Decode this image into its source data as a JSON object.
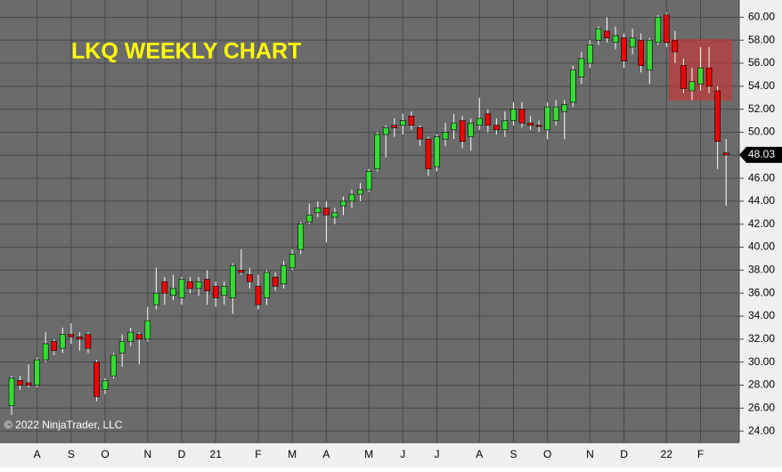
{
  "chart_data": {
    "type": "candlestick",
    "title": "LKQ WEEKLY CHART",
    "copyright": "© 2022 NinjaTrader, LLC",
    "categories": [
      null,
      null,
      null,
      "A",
      null,
      null,
      null,
      "S",
      null,
      null,
      null,
      "O",
      null,
      null,
      null,
      null,
      "N",
      null,
      null,
      null,
      "D",
      null,
      null,
      null,
      "21",
      null,
      null,
      null,
      null,
      "F",
      null,
      null,
      null,
      "M",
      null,
      null,
      null,
      "A",
      null,
      null,
      null,
      null,
      "M",
      null,
      null,
      null,
      "J",
      null,
      null,
      null,
      "J",
      null,
      null,
      null,
      null,
      "A",
      null,
      null,
      null,
      "S",
      null,
      null,
      null,
      "O",
      null,
      null,
      null,
      null,
      "N",
      null,
      null,
      null,
      "D",
      null,
      null,
      null,
      null,
      "22",
      null,
      null,
      null,
      "F",
      null,
      null,
      null
    ],
    "open": [
      26.2,
      28.4,
      28.2,
      28.0,
      30.2,
      31.8,
      31.2,
      32.4,
      32.2,
      32.4,
      30.0,
      27.6,
      28.8,
      30.8,
      31.8,
      32.4,
      32.0,
      35.0,
      37.0,
      35.8,
      35.6,
      37.0,
      36.4,
      37.2,
      36.6,
      35.8,
      35.6,
      38.0,
      37.6,
      36.6,
      35.6,
      37.4,
      36.8,
      38.2,
      39.8,
      42.2,
      43.0,
      43.4,
      42.6,
      43.6,
      44.0,
      44.6,
      45.0,
      46.8,
      49.8,
      50.6,
      50.6,
      51.4,
      50.4,
      49.4,
      47.0,
      49.4,
      50.2,
      51.0,
      49.6,
      50.6,
      51.6,
      50.6,
      50.2,
      51.0,
      52.0,
      50.8,
      50.6,
      50.2,
      51.0,
      51.8,
      52.6,
      54.8,
      56.0,
      58.0,
      58.8,
      57.8,
      58.2,
      57.4,
      58.0,
      55.4,
      57.8,
      60.2,
      58.0,
      55.8,
      53.6,
      54.2,
      55.6,
      53.6,
      48.2
    ],
    "high": [
      28.8,
      28.8,
      29.8,
      30.4,
      32.6,
      32.0,
      33.0,
      33.4,
      32.6,
      32.6,
      30.2,
      28.6,
      30.8,
      32.4,
      33.0,
      32.6,
      34.8,
      38.2,
      37.4,
      37.6,
      37.4,
      37.4,
      37.4,
      38.0,
      37.0,
      37.0,
      38.6,
      39.8,
      38.2,
      37.6,
      38.0,
      37.8,
      38.8,
      39.8,
      42.2,
      43.8,
      44.0,
      44.0,
      43.4,
      44.4,
      45.0,
      45.6,
      46.8,
      50.0,
      50.6,
      51.2,
      51.6,
      51.8,
      50.6,
      49.6,
      49.8,
      50.8,
      51.6,
      51.4,
      51.2,
      53.0,
      52.0,
      51.2,
      51.8,
      52.6,
      52.6,
      51.4,
      51.0,
      52.6,
      52.8,
      52.8,
      55.8,
      57.0,
      58.0,
      59.2,
      60.0,
      59.2,
      58.6,
      59.0,
      58.6,
      58.2,
      60.2,
      60.4,
      58.8,
      56.4,
      55.6,
      57.4,
      57.4,
      54.0,
      49.4
    ],
    "low": [
      25.4,
      27.6,
      27.8,
      27.8,
      30.0,
      30.6,
      30.8,
      31.6,
      31.0,
      30.8,
      26.6,
      27.2,
      28.6,
      29.6,
      31.4,
      29.8,
      31.8,
      34.6,
      35.0,
      35.4,
      35.0,
      36.0,
      35.8,
      35.0,
      34.8,
      35.0,
      34.2,
      37.6,
      36.4,
      34.6,
      35.0,
      36.2,
      36.4,
      38.0,
      39.4,
      42.0,
      42.6,
      40.4,
      42.0,
      42.8,
      43.4,
      44.0,
      44.8,
      46.6,
      47.8,
      49.6,
      49.8,
      50.2,
      48.8,
      46.2,
      46.6,
      48.8,
      49.4,
      48.6,
      48.4,
      50.2,
      50.0,
      49.8,
      49.6,
      50.6,
      50.4,
      50.2,
      50.0,
      49.4,
      50.6,
      49.4,
      52.2,
      54.2,
      55.6,
      57.6,
      57.8,
      57.2,
      55.6,
      56.8,
      55.2,
      54.2,
      57.6,
      57.4,
      56.0,
      53.4,
      52.8,
      53.6,
      53.4,
      46.8,
      43.6
    ],
    "close": [
      28.6,
      28.0,
      28.0,
      30.2,
      31.6,
      31.0,
      32.4,
      32.2,
      32.0,
      31.2,
      27.0,
      28.4,
      30.6,
      31.8,
      32.6,
      32.0,
      33.6,
      36.0,
      36.0,
      36.4,
      37.2,
      36.4,
      37.0,
      36.2,
      35.6,
      36.6,
      38.4,
      37.8,
      37.0,
      35.0,
      37.8,
      36.6,
      38.4,
      39.4,
      42.0,
      42.8,
      43.4,
      42.8,
      43.0,
      44.0,
      44.6,
      45.0,
      46.6,
      49.8,
      50.4,
      50.4,
      51.0,
      50.6,
      49.4,
      46.8,
      49.6,
      50.0,
      50.8,
      49.2,
      50.8,
      51.2,
      50.6,
      50.2,
      51.0,
      52.0,
      50.8,
      50.6,
      50.5,
      52.2,
      52.2,
      52.4,
      55.4,
      56.4,
      57.6,
      59.0,
      58.2,
      58.4,
      56.2,
      58.2,
      55.8,
      58.0,
      60.0,
      57.8,
      57.0,
      53.8,
      54.4,
      55.6,
      54.0,
      49.2,
      48.03
    ],
    "up_color": "#33dd33",
    "down_color": "#ee0000",
    "last_price": {
      "value": 48.03,
      "label": "48.03"
    },
    "ylim": [
      23,
      61.5
    ],
    "yticks": [
      {
        "value": 24,
        "label": "24.00"
      },
      {
        "value": 26,
        "label": "26.00"
      },
      {
        "value": 28,
        "label": "28.00"
      },
      {
        "value": 30,
        "label": "30.00"
      },
      {
        "value": 32,
        "label": "32.00"
      },
      {
        "value": 34,
        "label": "34.00"
      },
      {
        "value": 36,
        "label": "36.00"
      },
      {
        "value": 38,
        "label": "38.00"
      },
      {
        "value": 40,
        "label": "40.00"
      },
      {
        "value": 42,
        "label": "42.00"
      },
      {
        "value": 44,
        "label": "44.00"
      },
      {
        "value": 46,
        "label": "46.00"
      },
      {
        "value": 48,
        "label": "48.00"
      },
      {
        "value": 50,
        "label": "50.00"
      },
      {
        "value": 52,
        "label": "52.00"
      },
      {
        "value": 54,
        "label": "54.00"
      },
      {
        "value": 56,
        "label": "56.00"
      },
      {
        "value": 58,
        "label": "58.00"
      },
      {
        "value": 60,
        "label": "60.00"
      }
    ],
    "grid": true
  }
}
